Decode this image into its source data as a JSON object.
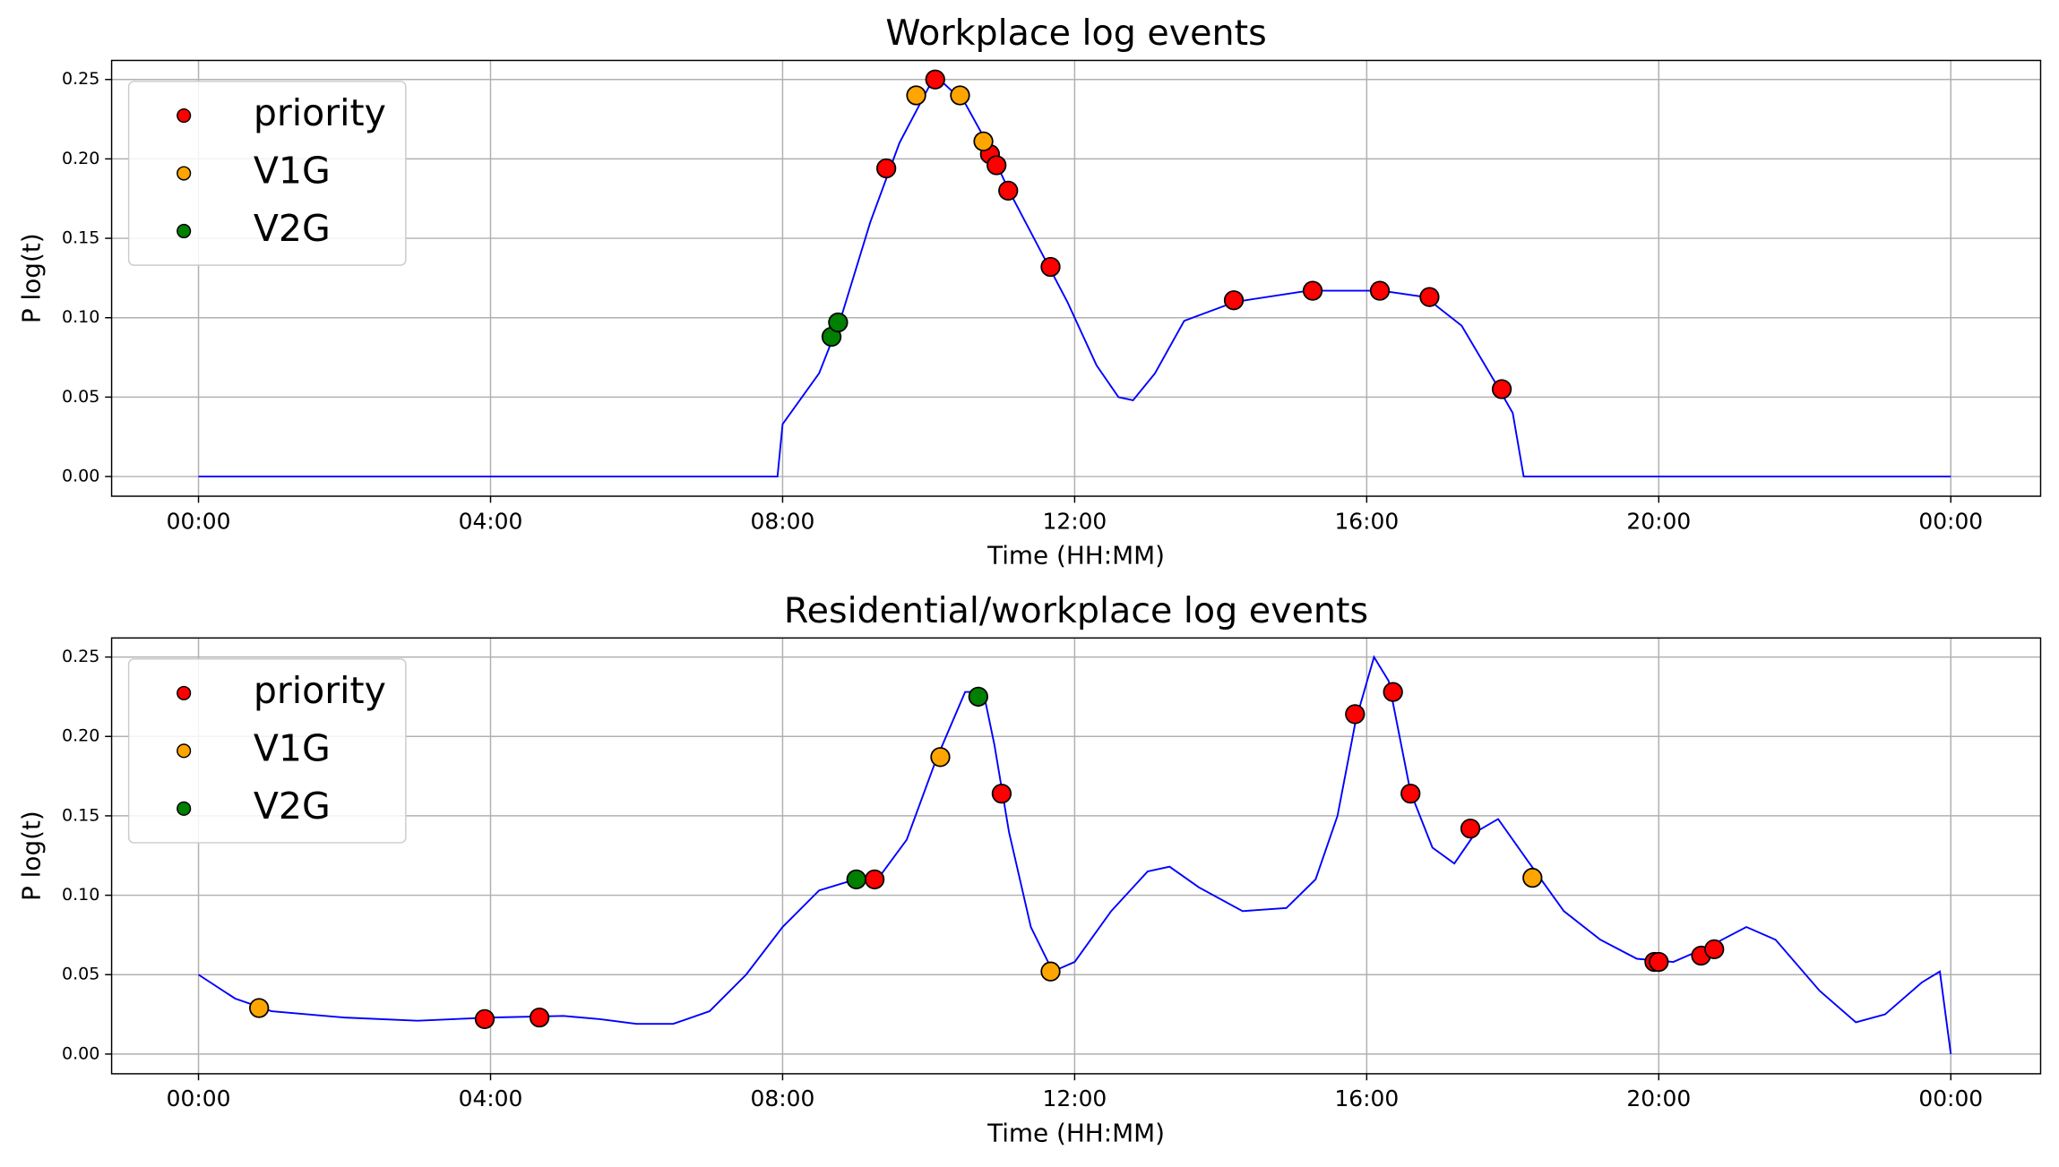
{
  "chart_data": [
    {
      "type": "line",
      "title": "Workplace log events",
      "xlabel": "Time (HH:MM)",
      "ylabel": "P log(t)",
      "xlim": [
        -1.19,
        25.23
      ],
      "ylim": [
        -0.0124,
        0.262
      ],
      "xticks": [
        {
          "value": 0,
          "label": "00:00"
        },
        {
          "value": 4,
          "label": "04:00"
        },
        {
          "value": 8,
          "label": "08:00"
        },
        {
          "value": 12,
          "label": "12:00"
        },
        {
          "value": 16,
          "label": "16:00"
        },
        {
          "value": 20,
          "label": "20:00"
        },
        {
          "value": 24,
          "label": "00:00"
        }
      ],
      "yticks": [
        {
          "value": 0,
          "label": "0.00"
        },
        {
          "value": 0.05,
          "label": "0.05"
        },
        {
          "value": 0.1,
          "label": "0.10"
        },
        {
          "value": 0.15,
          "label": "0.15"
        },
        {
          "value": 0.2,
          "label": "0.20"
        },
        {
          "value": 0.25,
          "label": "0.25"
        }
      ],
      "grid": true,
      "legend": "upper left",
      "curve": {
        "color": "#0000ff",
        "x": [
          0,
          7.93,
          8.0,
          8.5,
          8.8,
          9.2,
          9.6,
          10.0,
          10.15,
          10.5,
          10.8,
          11.1,
          11.5,
          11.9,
          12.3,
          12.6,
          12.8,
          13.1,
          13.5,
          14.2,
          15.2,
          16.2,
          16.8,
          17.3,
          17.75,
          18.0,
          18.15,
          24
        ],
        "values": [
          0,
          0,
          0.033,
          0.065,
          0.1,
          0.16,
          0.21,
          0.245,
          0.25,
          0.235,
          0.21,
          0.18,
          0.145,
          0.11,
          0.07,
          0.05,
          0.048,
          0.065,
          0.098,
          0.11,
          0.117,
          0.117,
          0.113,
          0.095,
          0.06,
          0.04,
          0,
          0
        ]
      },
      "series": [
        {
          "name": "priority",
          "color": "#ff0000",
          "x": [
            9.42,
            10.09,
            10.84,
            10.93,
            11.09,
            11.67,
            14.18,
            15.26,
            16.18,
            16.86,
            17.85
          ],
          "values": [
            0.194,
            0.25,
            0.203,
            0.196,
            0.18,
            0.132,
            0.111,
            0.117,
            0.117,
            0.113,
            0.055
          ]
        },
        {
          "name": "V1G",
          "color": "#ffa500",
          "x": [
            9.83,
            10.43,
            10.75
          ],
          "values": [
            0.24,
            0.24,
            0.211
          ]
        },
        {
          "name": "V2G",
          "color": "#008000",
          "x": [
            8.67,
            8.76
          ],
          "values": [
            0.088,
            0.097
          ]
        }
      ]
    },
    {
      "type": "line",
      "title": "Residential/workplace log events",
      "xlabel": "Time (HH:MM)",
      "ylabel": "P log(t)",
      "xlim": [
        -1.19,
        25.23
      ],
      "ylim": [
        -0.0124,
        0.262
      ],
      "xticks": [
        {
          "value": 0,
          "label": "00:00"
        },
        {
          "value": 4,
          "label": "04:00"
        },
        {
          "value": 8,
          "label": "08:00"
        },
        {
          "value": 12,
          "label": "12:00"
        },
        {
          "value": 16,
          "label": "16:00"
        },
        {
          "value": 20,
          "label": "20:00"
        },
        {
          "value": 24,
          "label": "00:00"
        }
      ],
      "yticks": [
        {
          "value": 0,
          "label": "0.00"
        },
        {
          "value": 0.05,
          "label": "0.05"
        },
        {
          "value": 0.1,
          "label": "0.10"
        },
        {
          "value": 0.15,
          "label": "0.15"
        },
        {
          "value": 0.2,
          "label": "0.20"
        },
        {
          "value": 0.25,
          "label": "0.25"
        }
      ],
      "grid": true,
      "legend": "upper left",
      "curve": {
        "color": "#0000ff",
        "x": [
          0,
          0.5,
          1,
          2,
          3,
          4,
          5,
          5.5,
          6,
          6.5,
          7,
          7.5,
          8,
          8.5,
          9,
          9.3,
          9.7,
          10.1,
          10.5,
          10.75,
          10.9,
          11.1,
          11.4,
          11.7,
          12,
          12.5,
          13,
          13.3,
          13.7,
          14.3,
          14.9,
          15.3,
          15.6,
          15.85,
          16.1,
          16.3,
          16.6,
          16.9,
          17.2,
          17.5,
          17.8,
          18.2,
          18.7,
          19.2,
          19.7,
          20.2,
          20.7,
          21.2,
          21.6,
          22.2,
          22.7,
          23.1,
          23.6,
          23.85,
          24
        ],
        "values": [
          0.05,
          0.035,
          0.027,
          0.023,
          0.021,
          0.023,
          0.024,
          0.022,
          0.019,
          0.019,
          0.027,
          0.05,
          0.08,
          0.103,
          0.11,
          0.11,
          0.135,
          0.185,
          0.228,
          0.228,
          0.195,
          0.14,
          0.08,
          0.052,
          0.058,
          0.09,
          0.115,
          0.118,
          0.105,
          0.09,
          0.092,
          0.11,
          0.15,
          0.21,
          0.25,
          0.235,
          0.165,
          0.13,
          0.12,
          0.14,
          0.148,
          0.122,
          0.09,
          0.072,
          0.06,
          0.058,
          0.068,
          0.08,
          0.072,
          0.04,
          0.02,
          0.025,
          0.045,
          0.052,
          0
        ]
      },
      "series": [
        {
          "name": "priority",
          "color": "#ff0000",
          "x": [
            3.92,
            4.67,
            9.26,
            11.0,
            15.84,
            16.36,
            16.6,
            17.42,
            19.94,
            20.0,
            20.58,
            20.76
          ],
          "values": [
            0.022,
            0.023,
            0.11,
            0.164,
            0.214,
            0.228,
            0.164,
            0.142,
            0.058,
            0.058,
            0.062,
            0.066
          ]
        },
        {
          "name": "V1G",
          "color": "#ffa500",
          "x": [
            0.83,
            10.16,
            11.67,
            18.27
          ],
          "values": [
            0.029,
            0.187,
            0.052,
            0.111
          ]
        },
        {
          "name": "V2G",
          "color": "#008000",
          "x": [
            9.01,
            10.68
          ],
          "values": [
            0.11,
            0.225
          ]
        }
      ]
    }
  ]
}
